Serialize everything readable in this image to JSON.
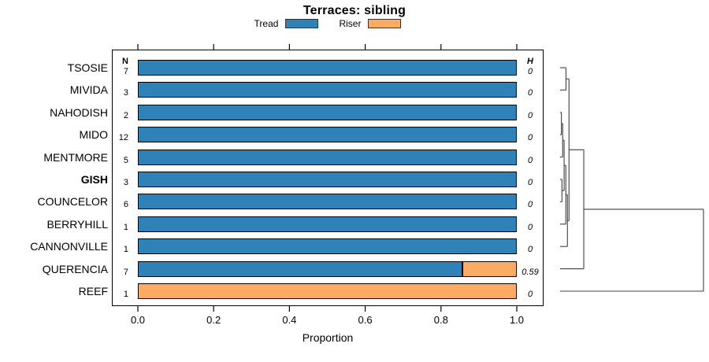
{
  "title": "Terraces: sibling",
  "legend": {
    "items": [
      {
        "label": "Tread",
        "color": "#2F82B8"
      },
      {
        "label": "Riser",
        "color": "#FBAC62"
      }
    ]
  },
  "columns": {
    "n_header": "N",
    "h_header": "H"
  },
  "x_axis": {
    "label": "Proportion",
    "tick_labels": [
      "0.0",
      "0.2",
      "0.4",
      "0.6",
      "0.8",
      "1.0"
    ],
    "tick_values": [
      0,
      0.2,
      0.4,
      0.6,
      0.8,
      1.0
    ],
    "range": [
      0,
      1.0
    ]
  },
  "chart_data": {
    "type": "bar",
    "stacked": true,
    "orientation": "horizontal",
    "title": "Terraces: sibling",
    "xlabel": "Proportion",
    "xlim": [
      0,
      1.0
    ],
    "grid": false,
    "legend_position": "top",
    "categories": [
      "TSOSIE",
      "MIVIDA",
      "NAHODISH",
      "MIDO",
      "MENTMORE",
      "GISH",
      "COUNCELOR",
      "BERRYHILL",
      "CANNONVILLE",
      "QUERENCIA",
      "REEF"
    ],
    "bold_categories": [
      "GISH"
    ],
    "n_values": [
      7,
      3,
      2,
      12,
      5,
      3,
      6,
      1,
      1,
      7,
      1
    ],
    "h_values": [
      "0",
      "0",
      "0",
      "0",
      "0",
      "0",
      "0",
      "0",
      "0",
      "0.59",
      "0"
    ],
    "series": [
      {
        "name": "Tread",
        "color": "#2F82B8",
        "values": [
          1,
          1,
          1,
          1,
          1,
          1,
          1,
          1,
          1,
          0.857,
          0
        ]
      },
      {
        "name": "Riser",
        "color": "#FBAC62",
        "values": [
          0,
          0,
          0,
          0,
          0,
          0,
          0,
          0,
          0,
          0.143,
          1
        ]
      }
    ],
    "dendrogram": {
      "side": "right",
      "leaf_order": "same-as-categories",
      "merges": [
        {
          "id": "C0",
          "a": "L0",
          "b": "L1",
          "height": 0.041
        },
        {
          "id": "C1",
          "a": "L2",
          "b": "L3",
          "height": 0.009
        },
        {
          "id": "C2",
          "a": "C1",
          "b": "L4",
          "height": 0.018
        },
        {
          "id": "C3",
          "a": "L5",
          "b": "L6",
          "height": 0.013
        },
        {
          "id": "C4",
          "a": "C2",
          "b": "C3",
          "height": 0.028
        },
        {
          "id": "C5",
          "a": "C4",
          "b": "L7",
          "height": 0.04
        },
        {
          "id": "C6",
          "a": "C5",
          "b": "L8",
          "height": 0.051
        },
        {
          "id": "C7",
          "a": "C0",
          "b": "C6",
          "height": 0.062
        },
        {
          "id": "C8",
          "a": "C7",
          "b": "L9",
          "height": 0.165
        },
        {
          "id": "C9",
          "a": "C8",
          "b": "L10",
          "height": 1.0
        }
      ]
    }
  }
}
